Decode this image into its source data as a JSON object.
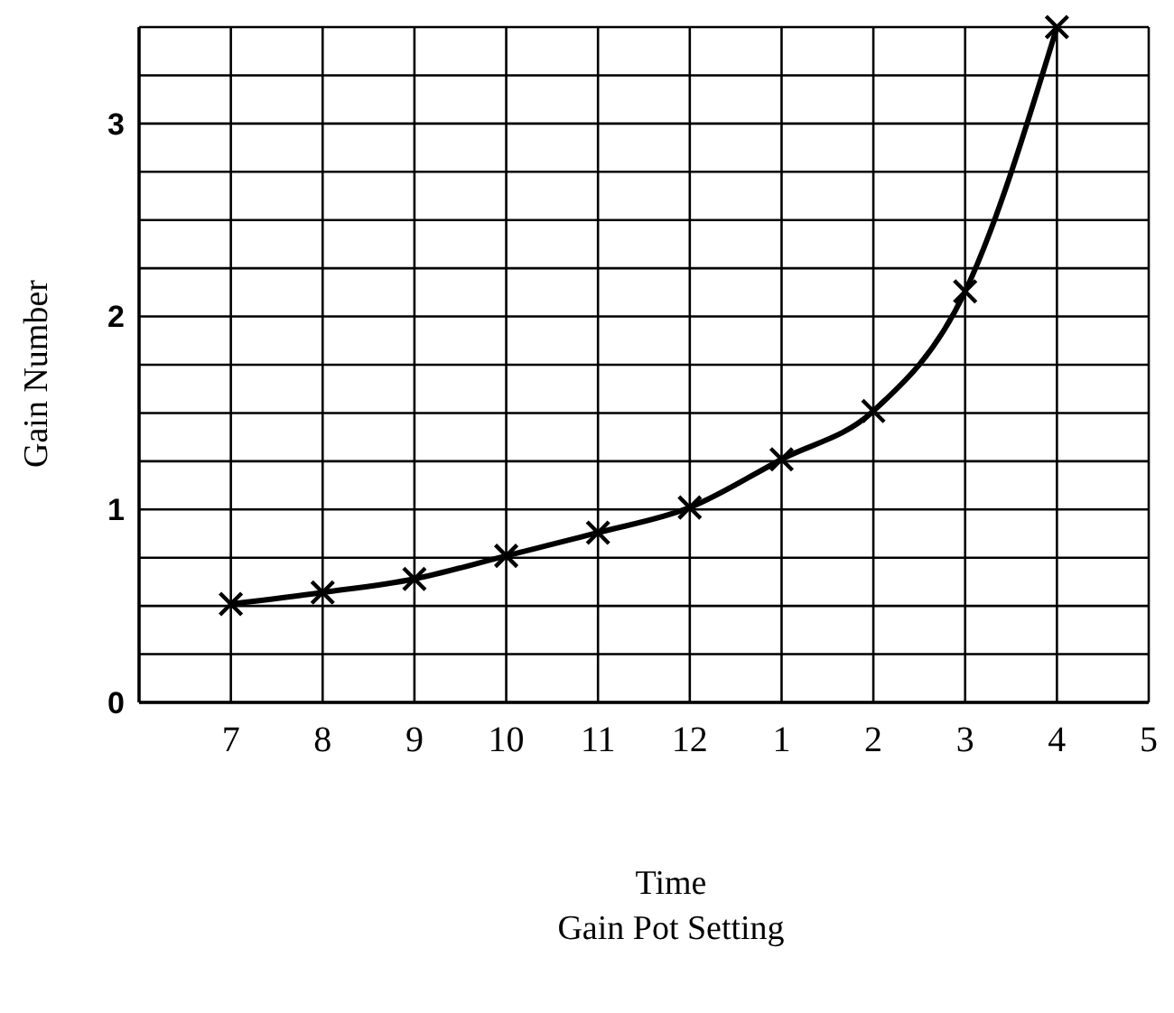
{
  "chart_data": {
    "type": "line",
    "xlabel": "Time\nGain Pot Setting",
    "ylabel": "Gain Number",
    "categories": [
      "7",
      "8",
      "9",
      "10",
      "11",
      "12",
      "1",
      "2",
      "3",
      "4",
      "5"
    ],
    "series": [
      {
        "color": "#000000",
        "values": [
          0.51,
          0.57,
          0.64,
          0.76,
          0.88,
          1.01,
          1.26,
          1.51,
          2.13,
          3.5,
          null
        ]
      }
    ],
    "ylim": [
      0,
      3.5
    ],
    "yticks": [
      0,
      {
        "value": 0.25,
        "label": null
      },
      {
        "value": 0.5,
        "label": null
      },
      {
        "value": 0.75,
        "label": null
      },
      1,
      {
        "value": 1.25,
        "label": null
      },
      {
        "value": 1.5,
        "label": null
      },
      {
        "value": 1.75,
        "label": null
      },
      2,
      {
        "value": 2.25,
        "label": null
      },
      {
        "value": 2.5,
        "label": null
      },
      {
        "value": 2.75,
        "label": null
      },
      3,
      {
        "value": 3.25,
        "label": null
      },
      {
        "value": 3.5,
        "label": null
      }
    ],
    "grid": true,
    "marker": "cross",
    "line_style": "solid"
  }
}
